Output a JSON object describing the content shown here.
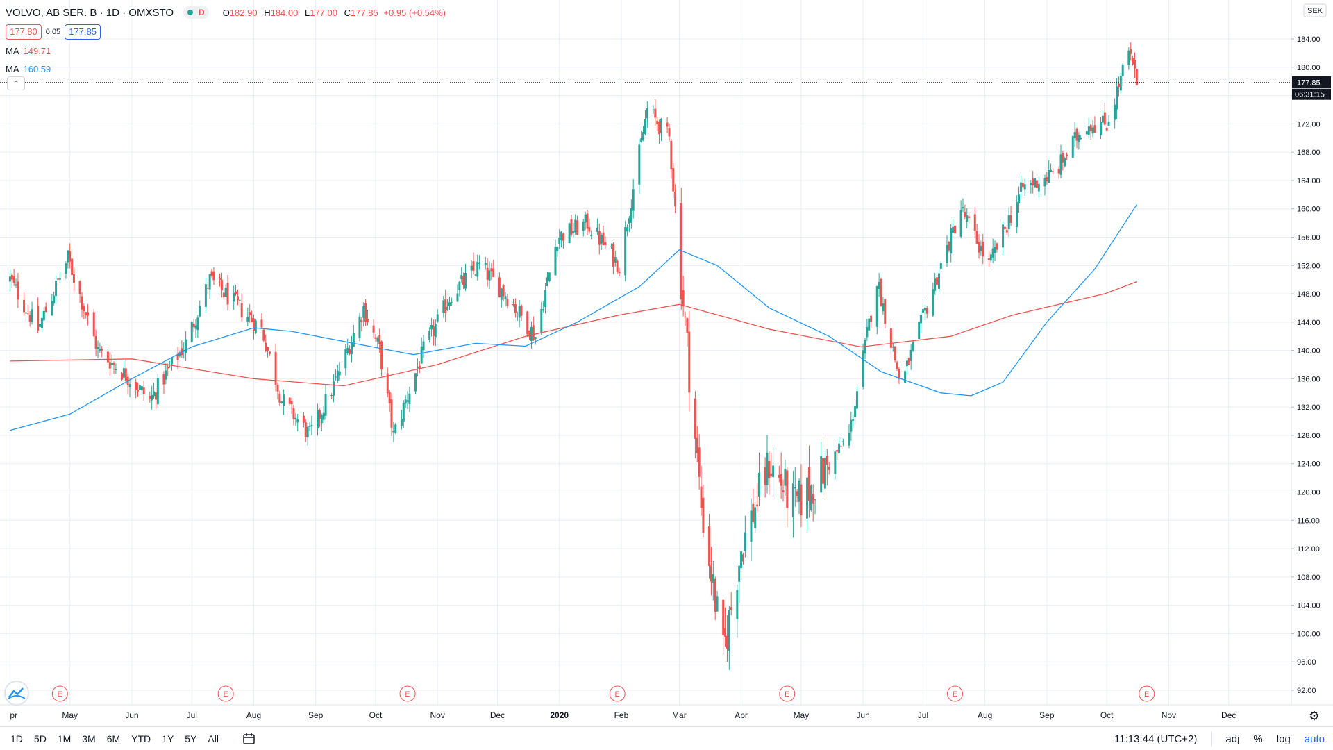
{
  "header": {
    "symbol_title": "VOLVO, AB SER. B · 1D · OMXSTO",
    "status_letter": "D",
    "ohlc": {
      "o_label": "O",
      "o": "182.90",
      "h_label": "H",
      "h": "184.00",
      "l_label": "L",
      "l": "177.00",
      "c_label": "C",
      "c": "177.85",
      "change": "+0.95 (+0.54%)"
    },
    "bid": "177.80",
    "spread": "0.05",
    "ask": "177.85",
    "ma1": {
      "label": "MA",
      "value": "149.71",
      "color": "#ef5350"
    },
    "ma2": {
      "label": "MA",
      "value": "160.59",
      "color": "#2196f3"
    }
  },
  "price_scale": {
    "currency": "SEK",
    "last_price": "177.85",
    "countdown": "06:31:15"
  },
  "earnings_marker": "E",
  "toolbar": {
    "timeframes": [
      "1D",
      "5D",
      "1M",
      "3M",
      "6M",
      "YTD",
      "1Y",
      "5Y",
      "All"
    ],
    "time": "11:13:44 (UTC+2)",
    "adj": "adj",
    "percent": "%",
    "log": "log",
    "auto": "auto"
  },
  "colors": {
    "up": "#26a69a",
    "down": "#ef5350",
    "ma_fast": "#2196f3",
    "ma_slow": "#ef5350",
    "grid": "#e9edf5"
  },
  "chart_data": {
    "type": "candlestick",
    "title": "VOLVO, AB SER. B · 1D · OMXSTO",
    "ylim": [
      90,
      186
    ],
    "y_ticks": [
      "92.00",
      "96.00",
      "100.00",
      "104.00",
      "108.00",
      "112.00",
      "116.00",
      "120.00",
      "124.00",
      "128.00",
      "132.00",
      "136.00",
      "140.00",
      "144.00",
      "148.00",
      "152.00",
      "156.00",
      "160.00",
      "164.00",
      "168.00",
      "172.00",
      "176.00",
      "180.00",
      "184.00"
    ],
    "x_labels": [
      "pr",
      "May",
      "Jun",
      "Jul",
      "Aug",
      "Sep",
      "Oct",
      "Nov",
      "Dec",
      "2020",
      "Feb",
      "Mar",
      "Apr",
      "May",
      "Jun",
      "Jul",
      "Aug",
      "Sep",
      "Oct",
      "Nov",
      "Dec"
    ],
    "close_path": [
      [
        "Apr 1 2019",
        150
      ],
      [
        "Apr 15 2019",
        143
      ],
      [
        "Apr 30 2019",
        153
      ],
      [
        "May 15 2019",
        140
      ],
      [
        "May 31 2019",
        136
      ],
      [
        "Jun 10 2019",
        133
      ],
      [
        "Jun 28 2019",
        141
      ],
      [
        "Jul 10 2019",
        150
      ],
      [
        "Jul 25 2019",
        146
      ],
      [
        "Aug 5 2019",
        143
      ],
      [
        "Aug 15 2019",
        133
      ],
      [
        "Aug 29 2019",
        128
      ],
      [
        "Sep 10 2019",
        135
      ],
      [
        "Sep 25 2019",
        146
      ],
      [
        "Oct 3 2019",
        140
      ],
      [
        "Oct 10 2019",
        128
      ],
      [
        "Oct 25 2019",
        140
      ],
      [
        "Nov 8 2019",
        148
      ],
      [
        "Nov 22 2019",
        152
      ],
      [
        "Dec 5 2019",
        148
      ],
      [
        "Dec 20 2019",
        142
      ],
      [
        "Dec 31 2019",
        156
      ],
      [
        "Jan 15 2020",
        158
      ],
      [
        "Jan 31 2020",
        152
      ],
      [
        "Feb 14 2020",
        174
      ],
      [
        "Feb 25 2020",
        170
      ],
      [
        "Mar 2 2020",
        150
      ],
      [
        "Mar 12 2020",
        118
      ],
      [
        "Mar 23 2020",
        97
      ],
      [
        "Apr 1 2020",
        112
      ],
      [
        "Apr 15 2020",
        124
      ],
      [
        "Apr 28 2020",
        118
      ],
      [
        "May 10 2020",
        122
      ],
      [
        "May 25 2020",
        128
      ],
      [
        "Jun 8 2020",
        150
      ],
      [
        "Jun 20 2020",
        135
      ],
      [
        "Jul 5 2020",
        148
      ],
      [
        "Jul 20 2020",
        160
      ],
      [
        "Aug 3 2020",
        152
      ],
      [
        "Aug 20 2020",
        163
      ],
      [
        "Sep 5 2020",
        165
      ],
      [
        "Sep 20 2020",
        172
      ],
      [
        "Oct 1 2020",
        172
      ],
      [
        "Oct 12 2020",
        182
      ],
      [
        "Oct 16 2020",
        177.85
      ]
    ],
    "series": [
      {
        "name": "MA",
        "value_label": "149.71",
        "color": "#ef5350",
        "points": [
          [
            "Apr 1 2019",
            138.5
          ],
          [
            "Jun 1 2019",
            138.8
          ],
          [
            "Aug 1 2019",
            136
          ],
          [
            "Sep 15 2019",
            135
          ],
          [
            "Nov 1 2019",
            138
          ],
          [
            "Dec 15 2019",
            142
          ],
          [
            "Jan 31 2020",
            145
          ],
          [
            "Mar 1 2020",
            146.5
          ],
          [
            "Apr 15 2020",
            143
          ],
          [
            "May 31 2020",
            140.5
          ],
          [
            "Jul 15 2020",
            142
          ],
          [
            "Aug 15 2020",
            145
          ],
          [
            "Sep 30 2020",
            148
          ],
          [
            "Oct 16 2020",
            149.71
          ]
        ]
      },
      {
        "name": "MA",
        "value_label": "160.59",
        "color": "#2196f3",
        "points": [
          [
            "Apr 1 2019",
            128.7
          ],
          [
            "May 1 2019",
            131
          ],
          [
            "Jun 1 2019",
            136
          ],
          [
            "Jul 1 2019",
            140.5
          ],
          [
            "Aug 1 2019",
            143.2
          ],
          [
            "Aug 20 2019",
            142.7
          ],
          [
            "Sep 20 2019",
            141
          ],
          [
            "Oct 20 2019",
            139.4
          ],
          [
            "Nov 20 2019",
            141
          ],
          [
            "Dec 15 2019",
            140.6
          ],
          [
            "Jan 10 2020",
            144
          ],
          [
            "Feb 10 2020",
            149
          ],
          [
            "Mar 1 2020",
            154.2
          ],
          [
            "Mar 20 2020",
            152
          ],
          [
            "Apr 15 2020",
            146
          ],
          [
            "May 15 2020",
            142
          ],
          [
            "Jun 10 2020",
            137
          ],
          [
            "Jul 10 2020",
            134
          ],
          [
            "Jul 25 2020",
            133.6
          ],
          [
            "Aug 10 2020",
            135.5
          ],
          [
            "Sep 1 2020",
            144
          ],
          [
            "Sep 25 2020",
            151.5
          ],
          [
            "Oct 16 2020",
            160.59
          ]
        ]
      }
    ],
    "earnings_events": [
      "Apr 26 2019",
      "Jul 18 2019",
      "Oct 17 2019",
      "Jan 30 2020",
      "Apr 24 2020",
      "Jul 17 2020",
      "Oct 21 2020"
    ],
    "last_price": 177.85,
    "grid": true
  }
}
